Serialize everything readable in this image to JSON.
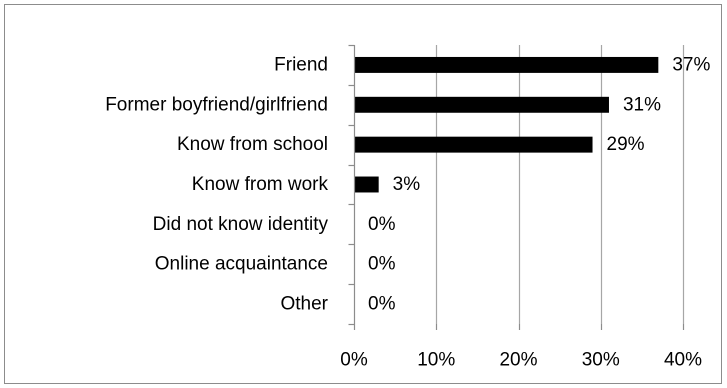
{
  "chart_data": {
    "type": "bar",
    "orientation": "horizontal",
    "title": "",
    "xlabel": "",
    "ylabel": "",
    "categories": [
      "Friend",
      "Former boyfriend/girlfriend",
      "Know from school",
      "Know from work",
      "Did not know identity",
      "Online acquaintance",
      "Other"
    ],
    "values": [
      37,
      31,
      29,
      3,
      0,
      0,
      0
    ],
    "data_labels": [
      "37%",
      "31%",
      "29%",
      "3%",
      "0%",
      "0%",
      "0%"
    ],
    "xlim": [
      0,
      40
    ],
    "x_ticks": [
      0,
      10,
      20,
      30,
      40
    ],
    "x_tick_labels": [
      "0%",
      "10%",
      "20%",
      "30%",
      "40%"
    ],
    "grid": "vertical",
    "legend": "none",
    "bar_color": "#000000",
    "grid_color": "#a6a6a6",
    "axis_color": "#8c8c8c"
  }
}
